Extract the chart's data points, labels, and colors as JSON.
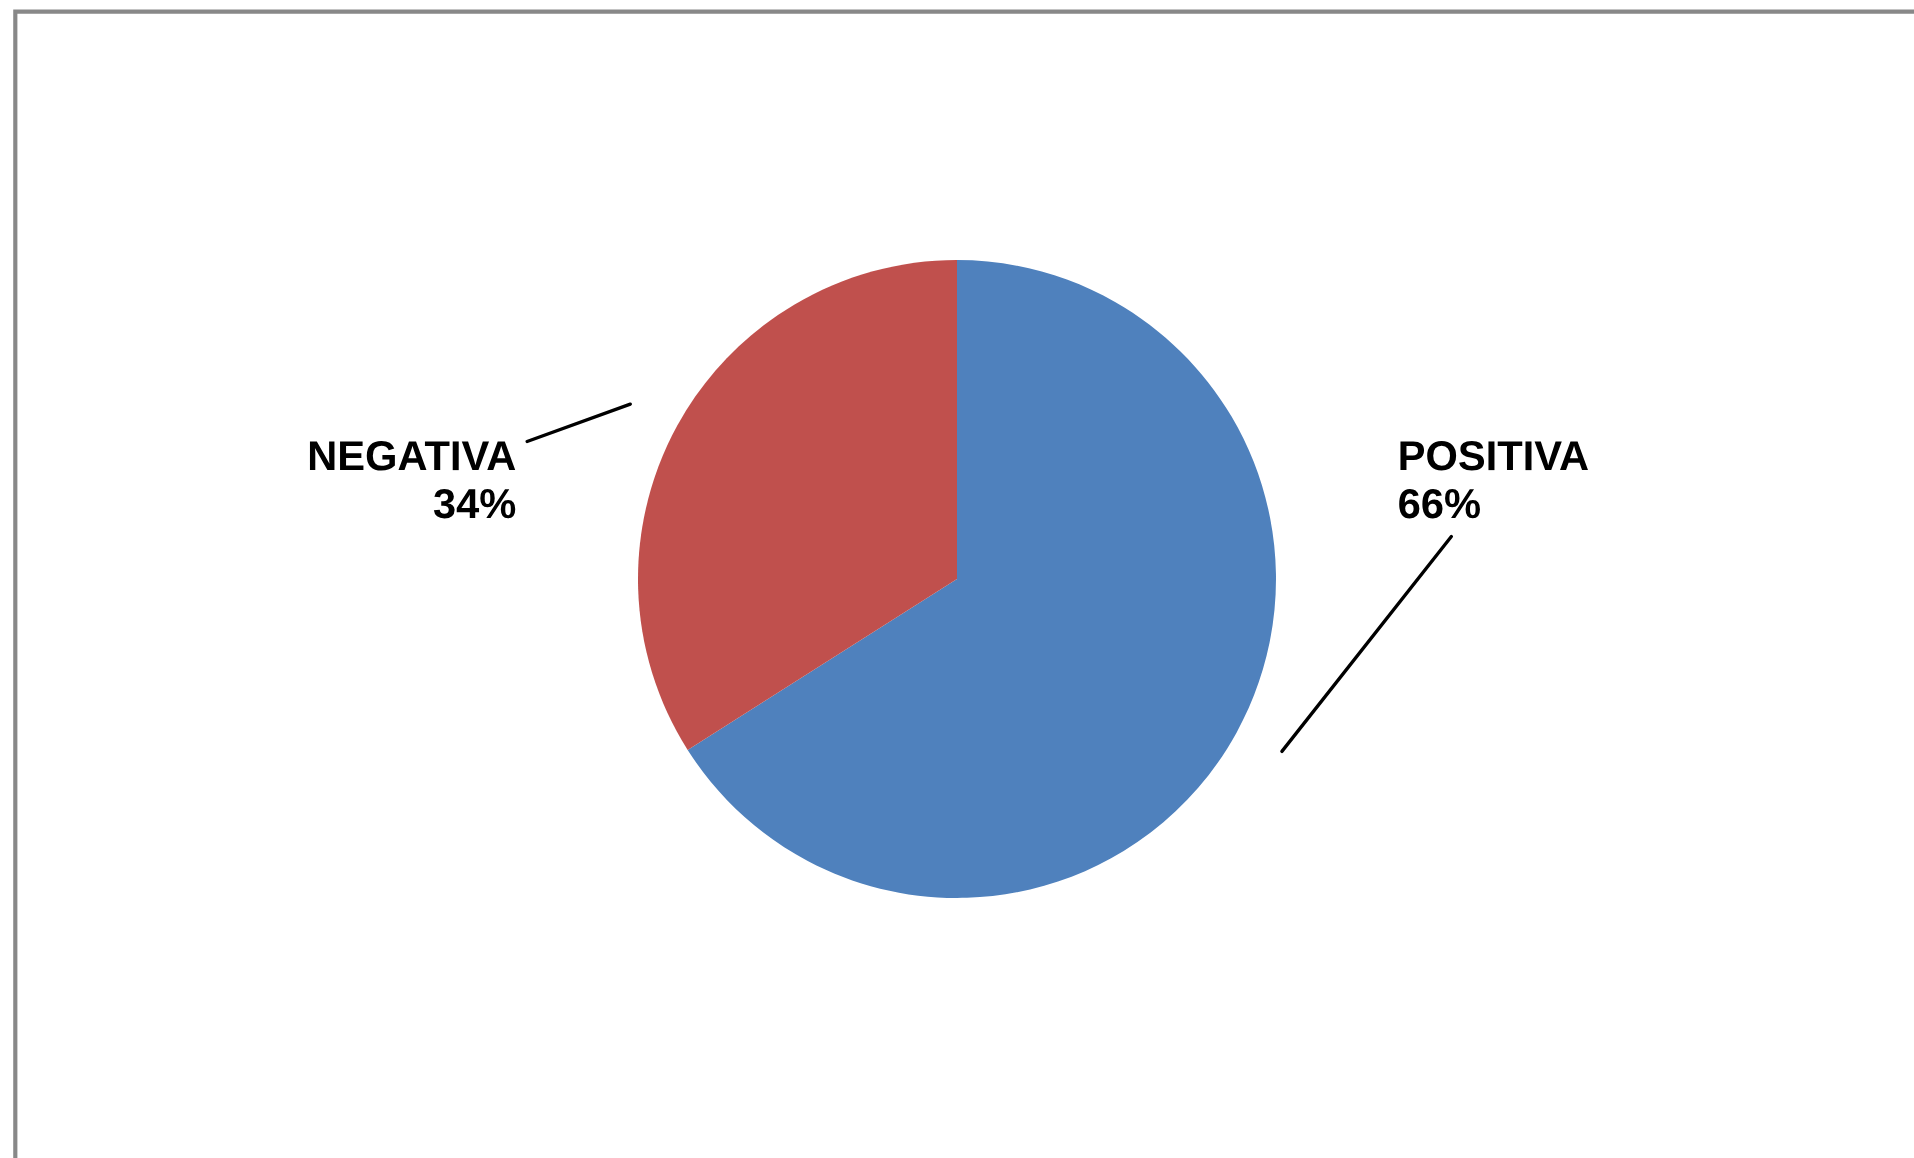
{
  "chart_data": {
    "type": "pie",
    "categories": [
      "POSITIVA",
      "NEGATIVA"
    ],
    "values": [
      66,
      34
    ],
    "value_labels": [
      "66%",
      "34%"
    ],
    "colors": [
      "#4f81bd",
      "#c0504d"
    ],
    "legend": false
  }
}
